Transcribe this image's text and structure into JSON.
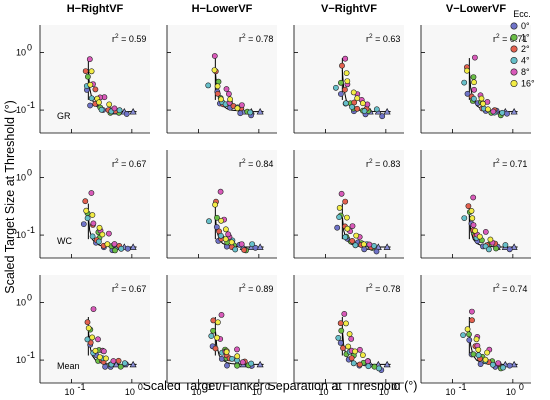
{
  "figure": {
    "x_label": "Scaled Target/Flanker Separation at Threshold (°)",
    "y_label": "Scaled Target Size at Threshold (°)"
  },
  "legend": {
    "title": "Ecc.",
    "entries": [
      {
        "label": "0°",
        "color": "#6f73c8"
      },
      {
        "label": "1°",
        "color": "#69bd45"
      },
      {
        "label": "2°",
        "color": "#e3604f"
      },
      {
        "label": "4°",
        "color": "#66bfc9"
      },
      {
        "label": "8°",
        "color": "#d85ab9"
      },
      {
        "label": "16°",
        "color": "#f2ec45"
      }
    ]
  },
  "chart_data": {
    "type": "scatter",
    "x_scale": "log",
    "y_scale": "log",
    "xlim": [
      0.03,
      2
    ],
    "ylim": [
      0.04,
      3
    ],
    "x_tick_labels": [
      "10",
      "10",
      "10"
    ],
    "x_tick_exponents": [
      "-1",
      "0",
      ""
    ],
    "x_tick_values": [
      0.1,
      1
    ],
    "y_tick_values": [
      0.1,
      1
    ],
    "columns": [
      "H−RightVF",
      "H−LowerVF",
      "V−RightVF",
      "V−LowerVF"
    ],
    "rows": [
      "GR",
      "WC",
      "Mean"
    ],
    "r2_prefix": "r",
    "r2_values": [
      [
        "0.59",
        "0.78",
        "0.63",
        "0.71"
      ],
      [
        "0.67",
        "0.84",
        "0.83",
        "0.71"
      ],
      [
        "0.67",
        "0.89",
        "0.78",
        "0.74"
      ]
    ],
    "fit_curves": {
      "x": [
        0.19,
        0.2,
        0.22,
        0.25,
        0.3,
        0.35,
        0.45,
        0.6,
        0.8,
        1.0,
        1.2
      ],
      "y_by_row": [
        [
          0.5,
          0.24,
          0.15,
          0.12,
          0.105,
          0.1,
          0.097,
          0.095,
          0.094,
          0.094,
          0.094
        ],
        [
          0.22,
          0.12,
          0.085,
          0.072,
          0.066,
          0.064,
          0.063,
          0.062,
          0.062,
          0.062,
          0.062
        ],
        [
          0.35,
          0.18,
          0.12,
          0.1,
          0.09,
          0.087,
          0.085,
          0.084,
          0.084,
          0.084,
          0.084
        ]
      ]
    },
    "series": [
      {
        "name": "0°",
        "color": "#6f73c8",
        "x": [
          0.18,
          0.23,
          0.34,
          0.5,
          0.8
        ],
        "y": [
          0.22,
          0.13,
          0.1,
          0.09,
          0.088
        ]
      },
      {
        "name": "1°",
        "color": "#69bd45",
        "x": [
          0.2,
          0.25,
          0.3,
          0.42,
          0.6
        ],
        "y": [
          0.35,
          0.15,
          0.12,
          0.1,
          0.09
        ]
      },
      {
        "name": "2°",
        "color": "#e3604f",
        "x": [
          0.19,
          0.22,
          0.28,
          0.36,
          0.55
        ],
        "y": [
          0.55,
          0.2,
          0.13,
          0.11,
          0.095
        ]
      },
      {
        "name": "4°",
        "color": "#66bfc9",
        "x": [
          0.17,
          0.24,
          0.32,
          0.45,
          0.7
        ],
        "y": [
          0.28,
          0.14,
          0.11,
          0.1,
          0.092
        ]
      },
      {
        "name": "8°",
        "color": "#d85ab9",
        "x": [
          0.21,
          0.26,
          0.38,
          0.3,
          0.5
        ],
        "y": [
          0.8,
          0.25,
          0.15,
          0.18,
          0.11
        ]
      },
      {
        "name": "16°",
        "color": "#f2ec45",
        "x": [
          0.2,
          0.23,
          0.27,
          0.33,
          0.4
        ],
        "y": [
          0.45,
          0.3,
          0.18,
          0.14,
          0.12
        ]
      }
    ]
  }
}
